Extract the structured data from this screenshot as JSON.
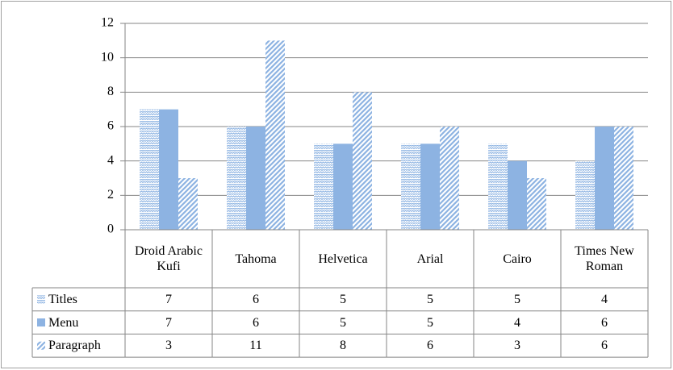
{
  "chart_data": {
    "type": "bar",
    "categories": [
      "Droid Arabic Kufi",
      "Tahoma",
      "Helvetica",
      "Arial",
      "Cairo",
      "Times New Roman"
    ],
    "series": [
      {
        "name": "Titles",
        "color": "#8db3e2",
        "pattern": "weave",
        "values": [
          7,
          6,
          5,
          5,
          5,
          4
        ]
      },
      {
        "name": "Menu",
        "color": "#8db3e2",
        "pattern": "solid",
        "values": [
          7,
          6,
          5,
          5,
          4,
          6
        ]
      },
      {
        "name": "Paragraph",
        "color": "#8db3e2",
        "pattern": "diagonal",
        "values": [
          3,
          11,
          8,
          6,
          3,
          6
        ]
      }
    ],
    "ylim": [
      0,
      12
    ],
    "yticks": [
      0,
      2,
      4,
      6,
      8,
      10,
      12
    ],
    "grid": true,
    "data_table": true
  }
}
